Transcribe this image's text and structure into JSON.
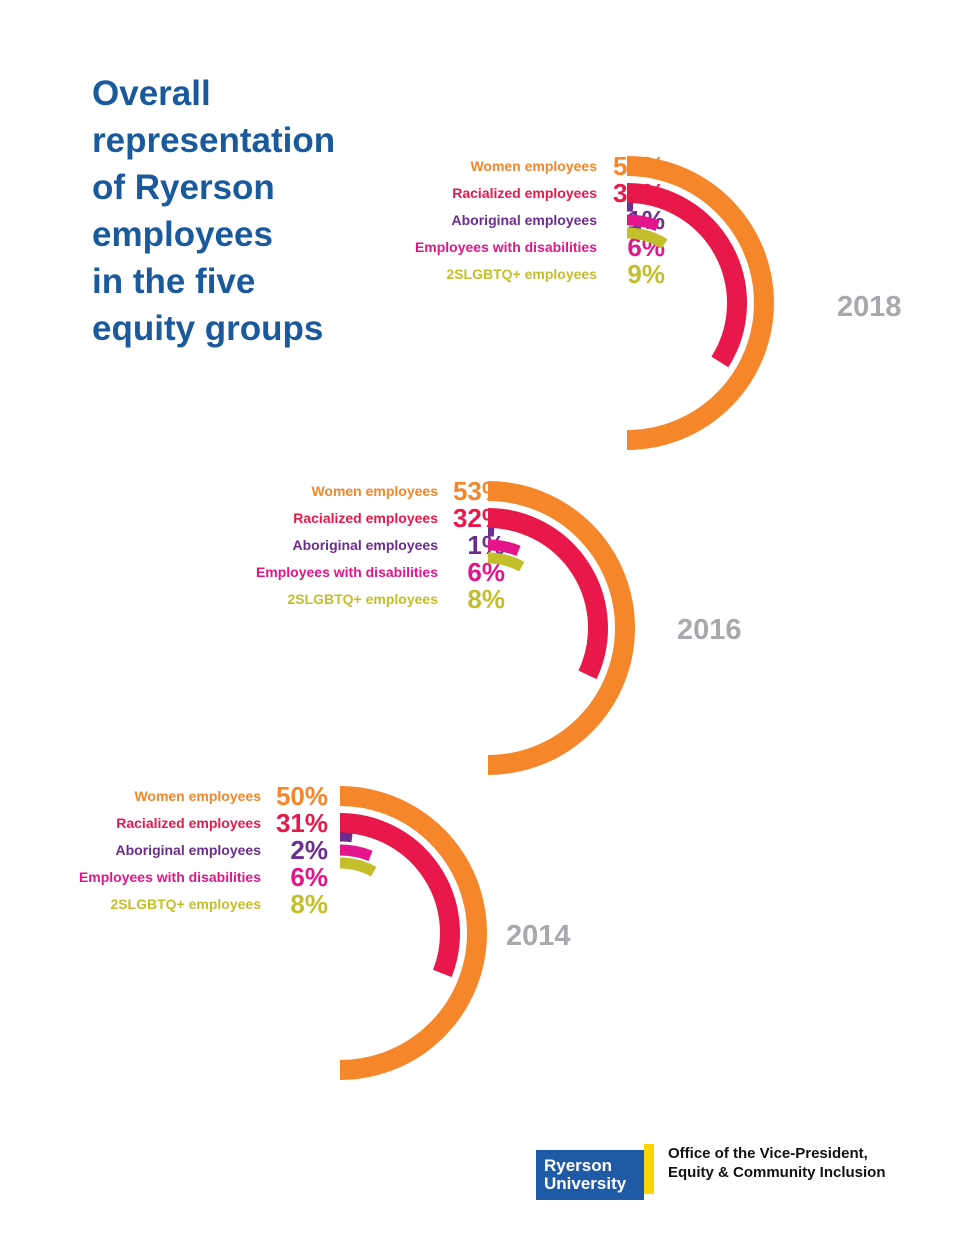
{
  "title_lines": [
    "Overall",
    "representation",
    "of Ryerson",
    "employees",
    "in the five",
    "equity groups"
  ],
  "colors": {
    "women": "#f5862a",
    "racialized": "#e8194a",
    "aboriginal": "#6b2d8e",
    "disabilities": "#e4158a",
    "lgbtq": "#c3bf2a",
    "year": "#a7a9ac",
    "title": "#1a5a9c"
  },
  "chart_data": [
    {
      "type": "radial-bar",
      "year": "2018",
      "series": [
        {
          "name": "Women employees",
          "value": 56,
          "label": "56%",
          "color_key": "women"
        },
        {
          "name": "Racialized employees",
          "value": 34,
          "label": "34%",
          "color_key": "racialized"
        },
        {
          "name": "Aboriginal employees",
          "value": 1,
          "label": "1%",
          "color_key": "aboriginal"
        },
        {
          "name": "Employees with disabilities",
          "value": 6,
          "label": "6%",
          "color_key": "disabilities"
        },
        {
          "name": "2SLGBTQ+ employees",
          "value": 9,
          "label": "9%",
          "color_key": "lgbtq"
        }
      ]
    },
    {
      "type": "radial-bar",
      "year": "2016",
      "series": [
        {
          "name": "Women employees",
          "value": 53,
          "label": "53%",
          "color_key": "women"
        },
        {
          "name": "Racialized employees",
          "value": 32,
          "label": "32%",
          "color_key": "racialized"
        },
        {
          "name": "Aboriginal employees",
          "value": 1,
          "label": "1%",
          "color_key": "aboriginal"
        },
        {
          "name": "Employees with disabilities",
          "value": 6,
          "label": "6%",
          "color_key": "disabilities"
        },
        {
          "name": "2SLGBTQ+ employees",
          "value": 8,
          "label": "8%",
          "color_key": "lgbtq"
        }
      ]
    },
    {
      "type": "radial-bar",
      "year": "2014",
      "series": [
        {
          "name": "Women employees",
          "value": 50,
          "label": "50%",
          "color_key": "women"
        },
        {
          "name": "Racialized employees",
          "value": 31,
          "label": "31%",
          "color_key": "racialized"
        },
        {
          "name": "Aboriginal employees",
          "value": 2,
          "label": "2%",
          "color_key": "aboriginal"
        },
        {
          "name": "Employees with disabilities",
          "value": 6,
          "label": "6%",
          "color_key": "disabilities"
        },
        {
          "name": "2SLGBTQ+ employees",
          "value": 8,
          "label": "8%",
          "color_key": "lgbtq"
        }
      ]
    }
  ],
  "logo": {
    "line1": "Ryerson",
    "line2": "University"
  },
  "office": {
    "line1": "Office of the Vice-President,",
    "line2": "Equity & Community Inclusion"
  }
}
